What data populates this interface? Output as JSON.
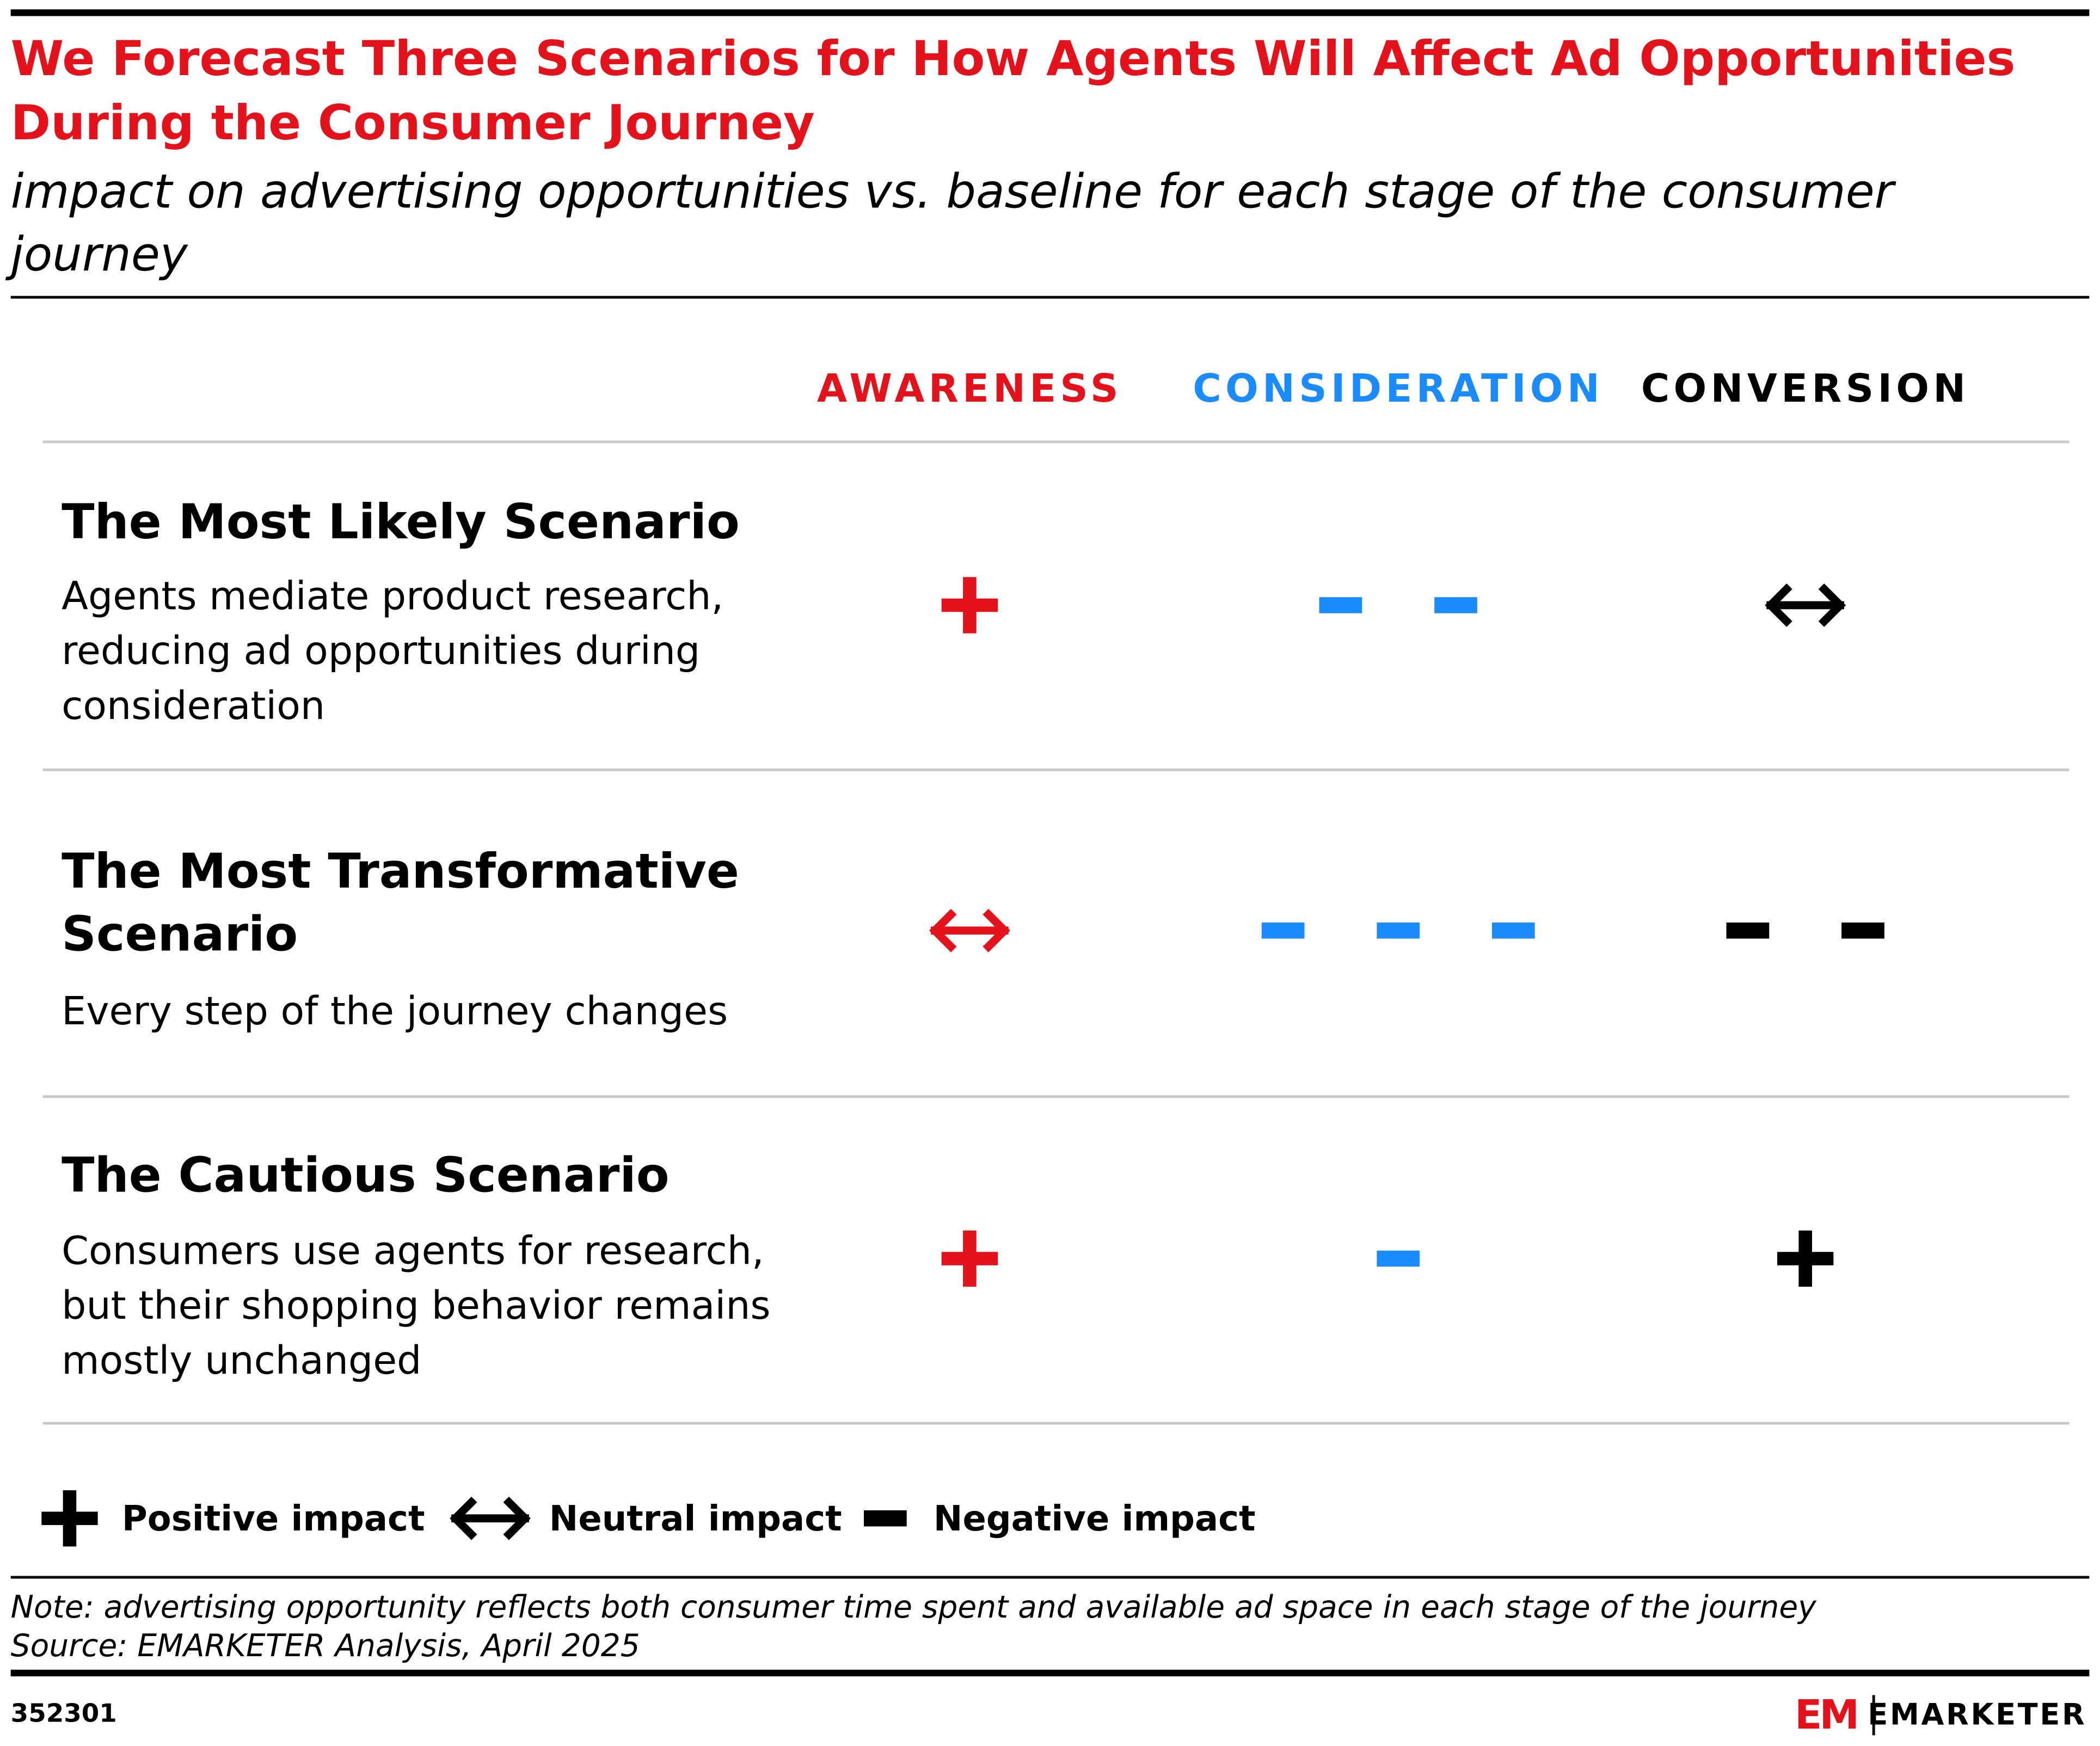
{
  "header": {
    "title": [
      "We Forecast Three Scenarios for How Agents Will Affect Ad Opportunities",
      "During the Consumer Journey"
    ],
    "subtitle": [
      "impact on advertising opportunities vs. baseline for each stage of the consumer",
      "journey"
    ]
  },
  "columns": [
    {
      "label": "AWARENESS",
      "color": "#e3121b"
    },
    {
      "label": "CONSIDERATION",
      "color": "#1a8cff"
    },
    {
      "label": "CONVERSION",
      "color": "#000000"
    }
  ],
  "rows": [
    {
      "title": [
        "The Most Likely Scenario"
      ],
      "description": [
        "Agents mediate product research,",
        "reducing ad opportunities during",
        "consideration"
      ],
      "impacts": [
        {
          "symbol": 0,
          "count": 1
        },
        {
          "symbol": 2,
          "count": 2
        },
        {
          "symbol": 1,
          "count": 1
        }
      ]
    },
    {
      "title": [
        "The Most Transformative",
        "Scenario"
      ],
      "description": [
        "Every step of the journey changes"
      ],
      "impacts": [
        {
          "symbol": 1,
          "count": 1
        },
        {
          "symbol": 2,
          "count": 3
        },
        {
          "symbol": 2,
          "count": 2
        }
      ]
    },
    {
      "title": [
        "The Cautious Scenario"
      ],
      "description": [
        "Consumers use agents for research,",
        "but their shopping behavior remains",
        "mostly unchanged"
      ],
      "impacts": [
        {
          "symbol": 0,
          "count": 1
        },
        {
          "symbol": 2,
          "count": 1
        },
        {
          "symbol": 0,
          "count": 1
        }
      ]
    }
  ],
  "legend": [
    "Positive impact",
    "Neutral impact",
    "Negative impact"
  ],
  "footer": {
    "note": "Note: advertising opportunity reflects both consumer time spent and available ad space in each stage of the journey",
    "source": "Source: EMARKETER Analysis, April 2025",
    "id": "352301",
    "brand": "EMARKETER",
    "logo": "EM"
  }
}
